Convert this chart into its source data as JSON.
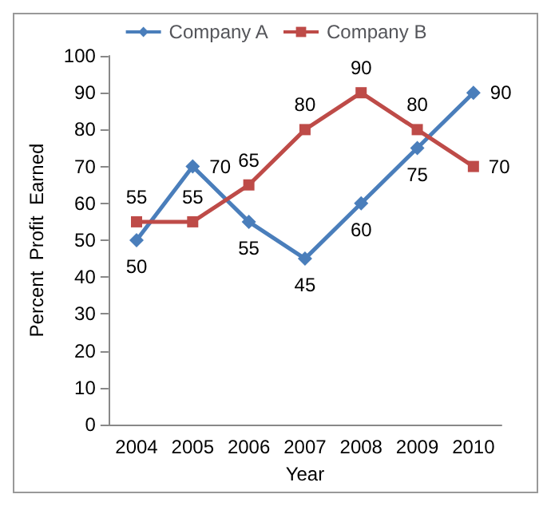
{
  "chart_data": {
    "type": "line",
    "xlabel": "Year",
    "ylabel": "Percent  Profit  Earned",
    "categories": [
      "2004",
      "2005",
      "2006",
      "2007",
      "2008",
      "2009",
      "2010"
    ],
    "series": [
      {
        "name": "Company A",
        "color": "#4a7ebb",
        "marker": "diamond",
        "values": [
          50,
          70,
          55,
          45,
          60,
          75,
          90
        ]
      },
      {
        "name": "Company B",
        "color": "#be4b48",
        "marker": "square",
        "values": [
          55,
          55,
          65,
          80,
          90,
          80,
          70
        ]
      }
    ],
    "ylim": [
      0,
      100
    ],
    "yticks": [
      0,
      10,
      20,
      30,
      40,
      50,
      60,
      70,
      80,
      90,
      100
    ],
    "legend": "top",
    "data_labels": true,
    "grid": false
  }
}
